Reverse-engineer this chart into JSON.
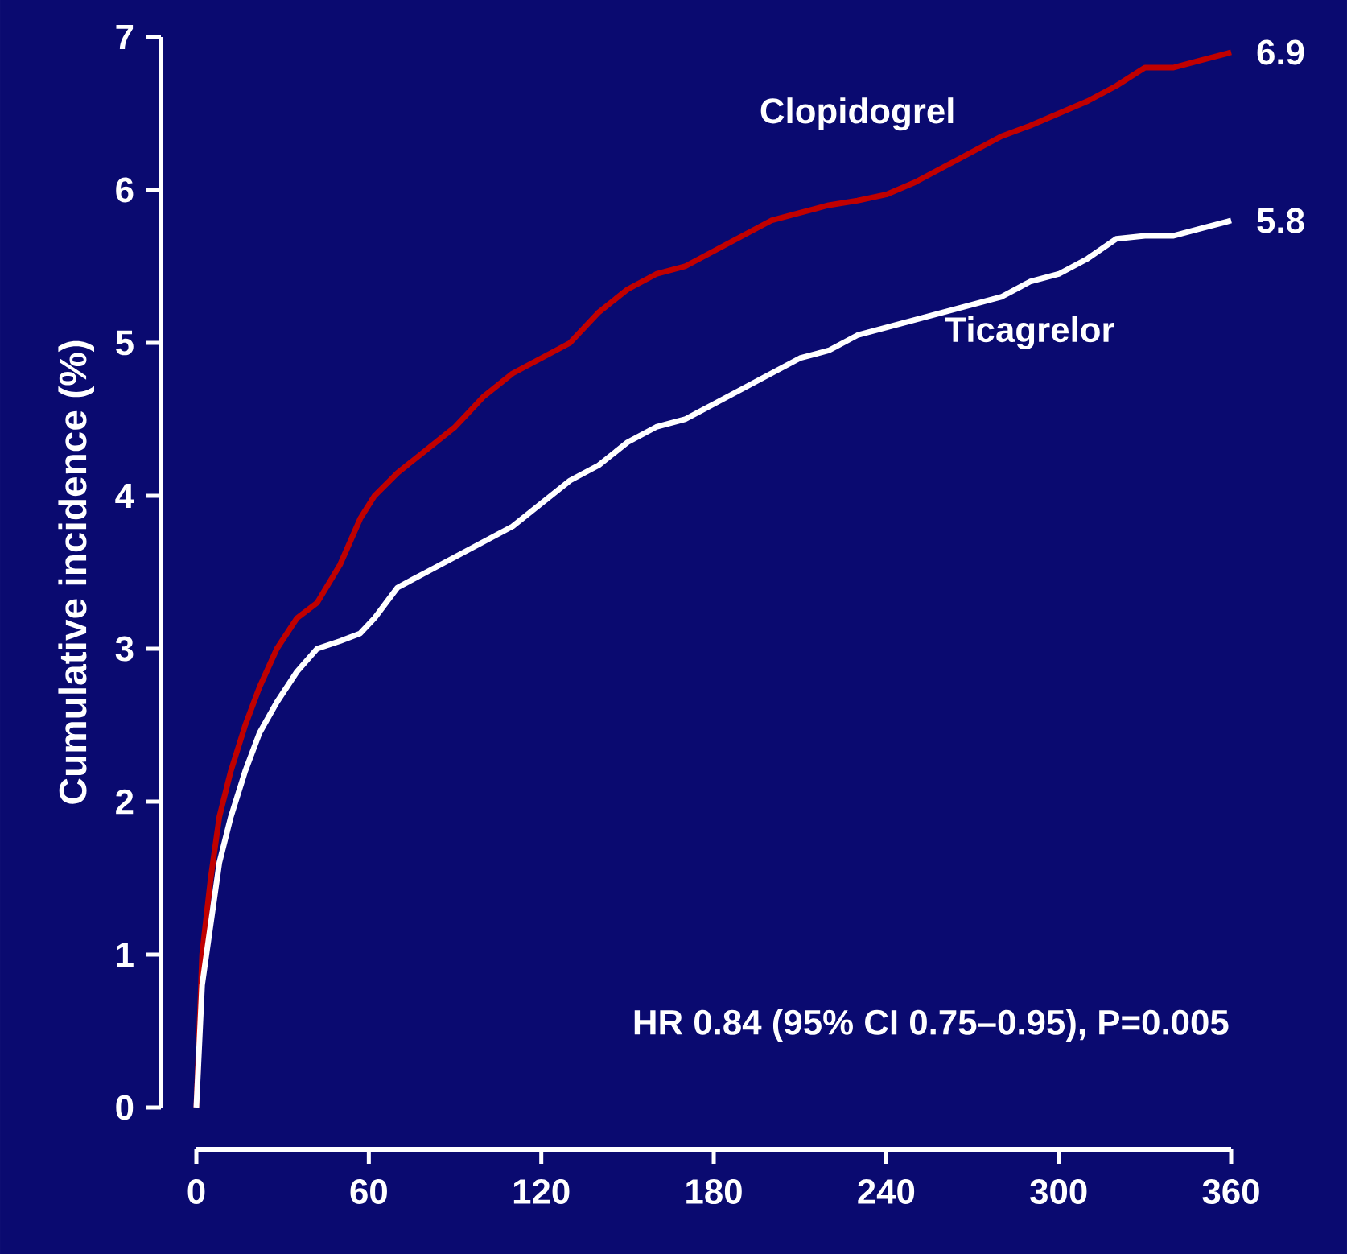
{
  "chart_data": {
    "type": "line",
    "ylabel": "Cumulative incidence (%)",
    "x": [
      0,
      2,
      5,
      8,
      12,
      17,
      22,
      28,
      35,
      42,
      50,
      57,
      62,
      70,
      80,
      90,
      100,
      110,
      120,
      130,
      140,
      150,
      160,
      170,
      180,
      190,
      200,
      210,
      220,
      230,
      240,
      250,
      260,
      270,
      280,
      290,
      300,
      310,
      320,
      330,
      340,
      350,
      360
    ],
    "series": [
      {
        "name": "Clopidogrel",
        "color": "#c00000",
        "values": [
          0,
          1.0,
          1.5,
          1.9,
          2.2,
          2.5,
          2.75,
          3.0,
          3.2,
          3.3,
          3.55,
          3.85,
          4.0,
          4.15,
          4.3,
          4.45,
          4.65,
          4.8,
          4.9,
          5.0,
          5.2,
          5.35,
          5.45,
          5.5,
          5.6,
          5.7,
          5.8,
          5.85,
          5.9,
          5.93,
          5.97,
          6.05,
          6.15,
          6.25,
          6.35,
          6.42,
          6.5,
          6.58,
          6.68,
          6.8,
          6.8,
          6.85,
          6.9
        ]
      },
      {
        "name": "Ticagrelor",
        "color": "#ffffff",
        "values": [
          0,
          0.8,
          1.2,
          1.6,
          1.9,
          2.2,
          2.45,
          2.65,
          2.85,
          3.0,
          3.05,
          3.1,
          3.2,
          3.4,
          3.5,
          3.6,
          3.7,
          3.8,
          3.95,
          4.1,
          4.2,
          4.35,
          4.45,
          4.5,
          4.6,
          4.7,
          4.8,
          4.9,
          4.95,
          5.05,
          5.1,
          5.15,
          5.2,
          5.25,
          5.3,
          5.4,
          5.45,
          5.55,
          5.68,
          5.7,
          5.7,
          5.75,
          5.8
        ]
      }
    ],
    "xlim": [
      0,
      360
    ],
    "xticks": [
      0,
      60,
      120,
      180,
      240,
      300,
      360
    ],
    "ylim": [
      0,
      7
    ],
    "yticks": [
      0,
      1,
      2,
      3,
      4,
      5,
      6,
      7
    ],
    "annotations": [
      {
        "text": "6.9",
        "x": 360,
        "y": 6.9
      },
      {
        "text": "5.8",
        "x": 360,
        "y": 5.8
      },
      "HR 0.84 (95% CI 0.75–0.95), P=0.005"
    ],
    "grid": false,
    "legend": false,
    "marker": "none",
    "line_style": "solid"
  }
}
